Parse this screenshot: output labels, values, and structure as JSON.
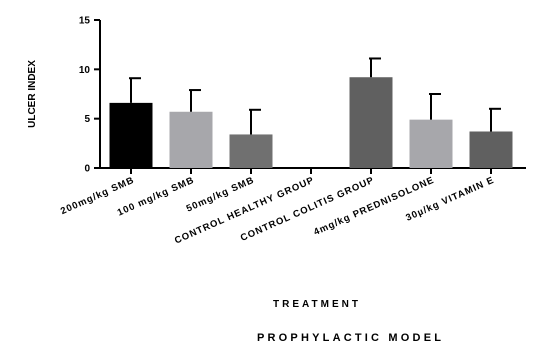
{
  "chart_data": {
    "type": "bar",
    "title": "",
    "xlabel": "TREATMENT",
    "ylabel": "ULCER INDEX",
    "footer": "PROPHYLACTIC MODEL",
    "ylim": [
      0,
      15
    ],
    "yticks": [
      "0",
      "5",
      "10",
      "15"
    ],
    "categories": [
      "200mg/kg SMB",
      "100 mg/kg SMB",
      "50mg/kg SMB",
      "CONTROL HEALTHY GROUP",
      "CONTROL COLITIS GROUP",
      "4mg/kg PREDNISOLONE",
      "30µ/kg VITAMIN E"
    ],
    "values": [
      6.6,
      5.7,
      3.4,
      0,
      9.2,
      4.9,
      3.7
    ],
    "errors": [
      2.5,
      2.2,
      2.5,
      0,
      1.9,
      2.6,
      2.3
    ],
    "colors": [
      "#000000",
      "#a7a7ab",
      "#707070",
      "#707070",
      "#606060",
      "#a7a7ab",
      "#606060"
    ],
    "grid": false,
    "legend": "none"
  }
}
